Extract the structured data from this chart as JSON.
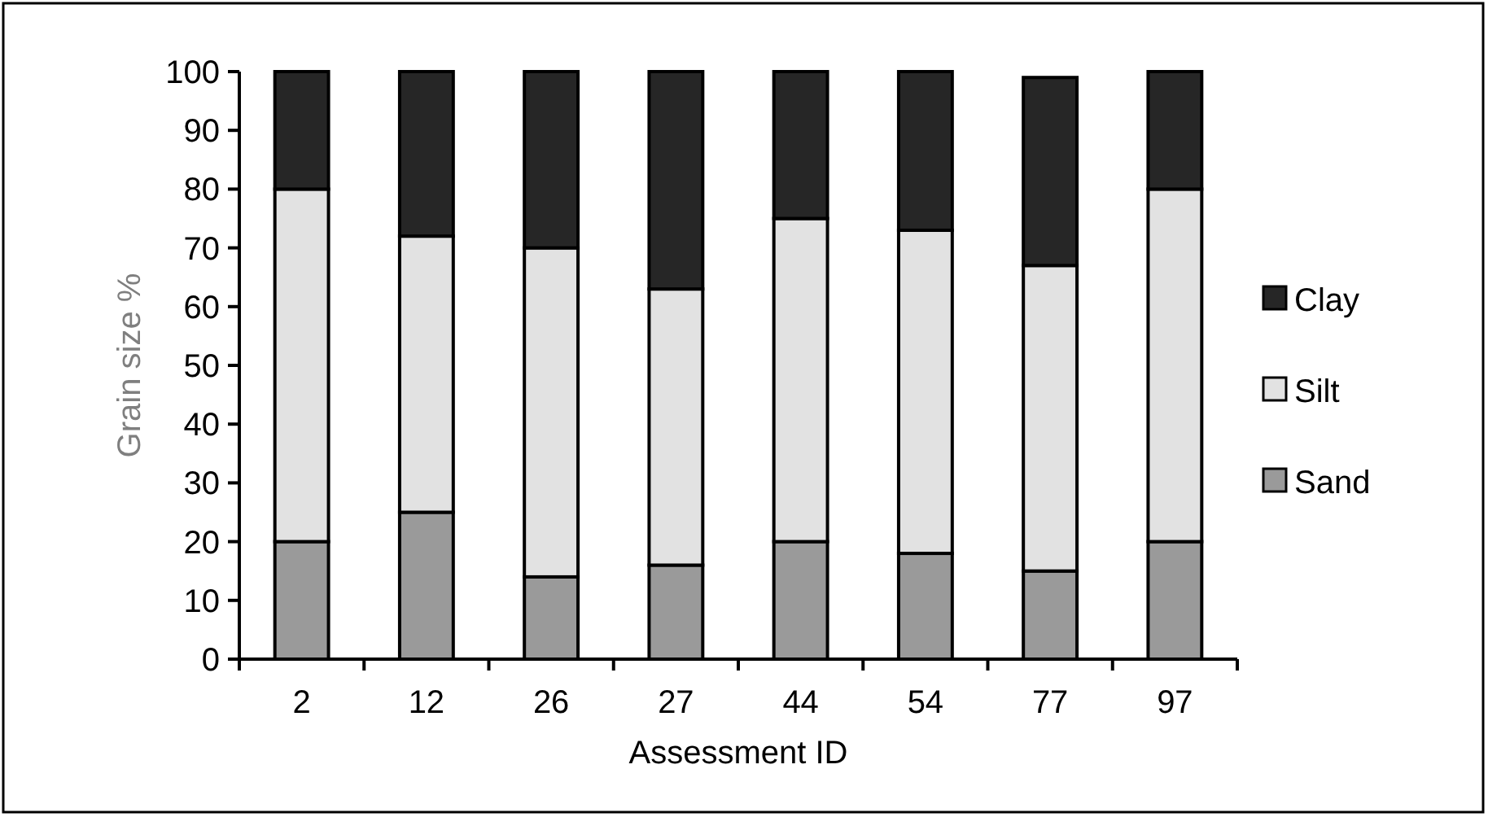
{
  "chart_data": {
    "type": "bar",
    "stacked": true,
    "xlabel": "Assessment ID",
    "ylabel": "Grain size %",
    "categories": [
      "2",
      "12",
      "26",
      "27",
      "44",
      "54",
      "77",
      "97"
    ],
    "series": [
      {
        "name": "Sand",
        "color": "#9a9a9a",
        "values": [
          20,
          25,
          14,
          16,
          20,
          18,
          15,
          20
        ]
      },
      {
        "name": "Silt",
        "color": "#e2e2e2",
        "values": [
          60,
          47,
          56,
          47,
          55,
          55,
          52,
          60
        ]
      },
      {
        "name": "Clay",
        "color": "#262626",
        "values": [
          20,
          28,
          30,
          37,
          25,
          27,
          32,
          20
        ]
      }
    ],
    "ylim": [
      0,
      100
    ],
    "yticks": [
      0,
      10,
      20,
      30,
      40,
      50,
      60,
      70,
      80,
      90,
      100
    ],
    "grid": false,
    "legend": "right"
  }
}
